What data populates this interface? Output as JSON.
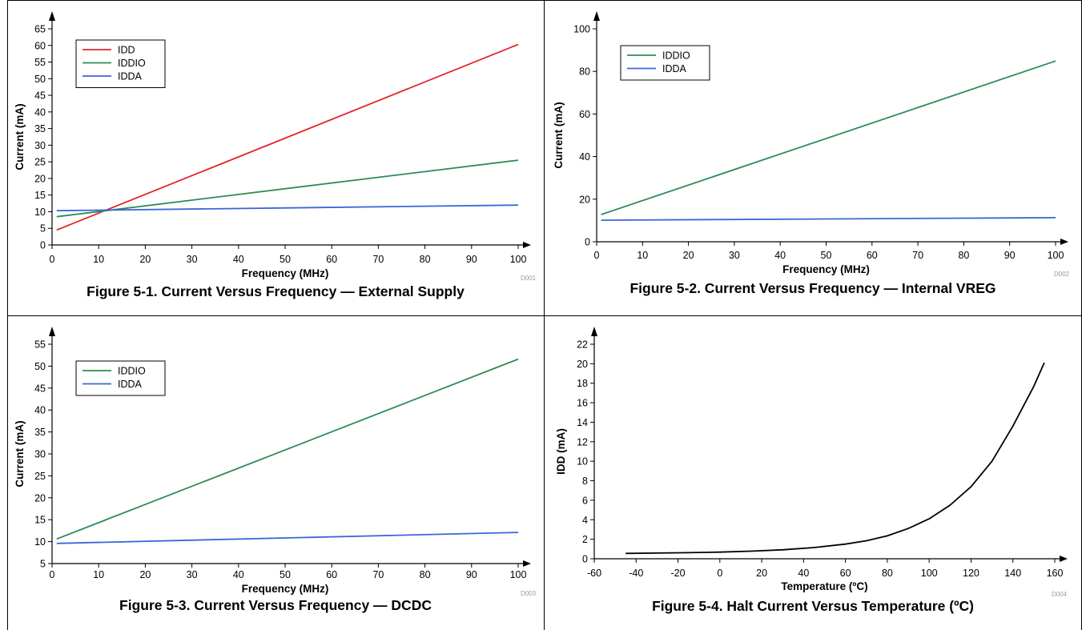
{
  "colors": {
    "IDD": "#e3242b",
    "IDDIO": "#2e8b57",
    "IDDA": "#3a66d8",
    "Temp": "#000000"
  },
  "chart_data": [
    {
      "type": "line",
      "caption": "Figure 5-1. Current Versus Frequency — External Supply",
      "code": "D001",
      "xlabel": "Frequency (MHz)",
      "ylabel": "Current (mA)",
      "xlim": [
        0,
        100
      ],
      "ylim": [
        0,
        65
      ],
      "xticks": [
        0,
        10,
        20,
        30,
        40,
        50,
        60,
        70,
        80,
        90,
        100
      ],
      "yticks": [
        0,
        5,
        10,
        15,
        20,
        25,
        30,
        35,
        40,
        45,
        50,
        55,
        60,
        65
      ],
      "legend_position": "top-left",
      "grid": false,
      "series": [
        {
          "name": "IDD",
          "color": "#e3242b",
          "x": [
            1,
            100
          ],
          "y": [
            4.5,
            60.3
          ]
        },
        {
          "name": "IDDIO",
          "color": "#2e8b57",
          "x": [
            1,
            100
          ],
          "y": [
            8.5,
            25.5
          ]
        },
        {
          "name": "IDDA",
          "color": "#3a66d8",
          "x": [
            1,
            100
          ],
          "y": [
            10.3,
            12.0
          ]
        }
      ]
    },
    {
      "type": "line",
      "caption": "Figure 5-2. Current Versus Frequency — Internal VREG",
      "code": "D002",
      "xlabel": "Frequency (MHz)",
      "ylabel": "Current (mA)",
      "xlim": [
        0,
        100
      ],
      "ylim": [
        0,
        100
      ],
      "xticks": [
        0,
        10,
        20,
        30,
        40,
        50,
        60,
        70,
        80,
        90,
        100
      ],
      "yticks": [
        0,
        20,
        40,
        60,
        80,
        100
      ],
      "legend_position": "top-left",
      "grid": false,
      "series": [
        {
          "name": "IDDIO",
          "color": "#2e8b57",
          "x": [
            1,
            100
          ],
          "y": [
            12.8,
            84.9
          ]
        },
        {
          "name": "IDDA",
          "color": "#3a66d8",
          "x": [
            1,
            100
          ],
          "y": [
            10.1,
            11.3
          ]
        }
      ]
    },
    {
      "type": "line",
      "caption": "Figure 5-3. Current Versus Frequency — DCDC",
      "code": "D003",
      "xlabel": "Frequency (MHz)",
      "ylabel": "Current (mA)",
      "xlim": [
        0,
        100
      ],
      "ylim": [
        5,
        55
      ],
      "xticks": [
        0,
        10,
        20,
        30,
        40,
        50,
        60,
        70,
        80,
        90,
        100
      ],
      "yticks": [
        5,
        10,
        15,
        20,
        25,
        30,
        35,
        40,
        45,
        50,
        55
      ],
      "legend_position": "top-left",
      "grid": false,
      "series": [
        {
          "name": "IDDIO",
          "color": "#2e8b57",
          "x": [
            1,
            100
          ],
          "y": [
            10.6,
            51.6
          ]
        },
        {
          "name": "IDDA",
          "color": "#3a66d8",
          "x": [
            1,
            100
          ],
          "y": [
            9.6,
            12.1
          ]
        }
      ]
    },
    {
      "type": "line",
      "caption": "Figure 5-4. Halt Current Versus Temperature (ºC)",
      "code": "D004",
      "xlabel": "Temperature (ºC)",
      "ylabel": "IDD (mA)",
      "xlim": [
        -60,
        160
      ],
      "ylim": [
        0,
        22
      ],
      "xticks": [
        -60,
        -40,
        -20,
        0,
        20,
        40,
        60,
        80,
        100,
        120,
        140,
        160
      ],
      "yticks": [
        0,
        2,
        4,
        6,
        8,
        10,
        12,
        14,
        16,
        18,
        20,
        22
      ],
      "legend_position": "none",
      "grid": false,
      "series": [
        {
          "color": "#000000",
          "x": [
            -45,
            -30,
            -15,
            0,
            15,
            30,
            45,
            60,
            70,
            80,
            90,
            100,
            110,
            120,
            130,
            140,
            150,
            155
          ],
          "y": [
            0.55,
            0.58,
            0.62,
            0.68,
            0.78,
            0.92,
            1.15,
            1.5,
            1.85,
            2.35,
            3.1,
            4.1,
            5.5,
            7.4,
            10.0,
            13.6,
            17.7,
            20.1
          ]
        }
      ]
    }
  ]
}
